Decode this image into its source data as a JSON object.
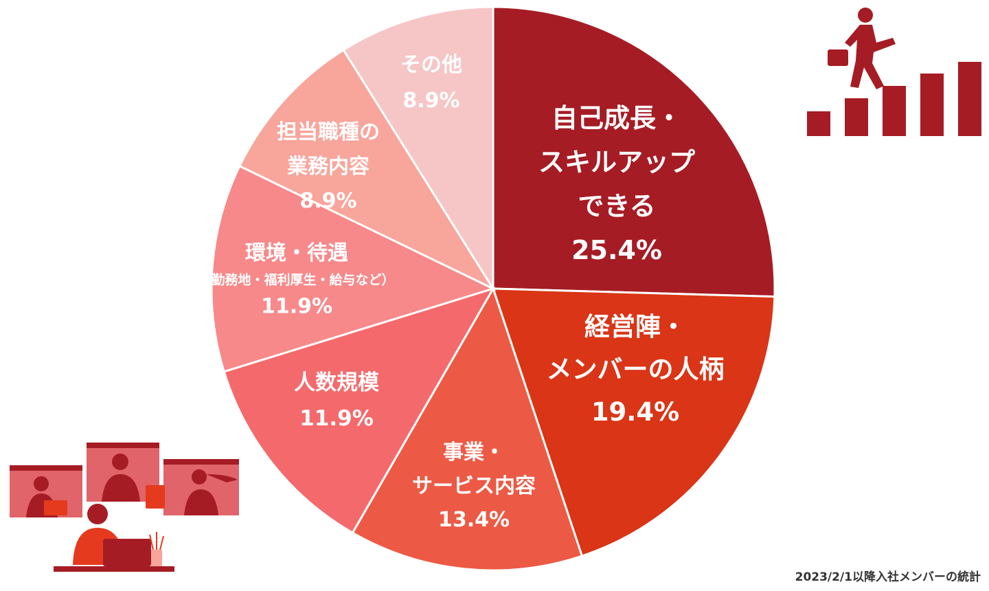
{
  "chart_data": {
    "type": "pie",
    "start_angle_deg": 0,
    "direction": "clockwise",
    "slices": [
      {
        "label_lines": [
          "自己成長・",
          "スキルアップ",
          "できる"
        ],
        "value": 25.4,
        "value_label": "25.4%",
        "color": "#a61c24"
      },
      {
        "label_lines": [
          "経営陣・",
          "メンバーの人柄"
        ],
        "value": 19.4,
        "value_label": "19.4%",
        "color": "#d93516"
      },
      {
        "label_lines": [
          "事業・",
          "サービス内容"
        ],
        "value": 13.4,
        "value_label": "13.4%",
        "color": "#ec5a45"
      },
      {
        "label_lines": [
          "人数規模"
        ],
        "value": 11.9,
        "value_label": "11.9%",
        "color": "#f46a6c"
      },
      {
        "label_lines": [
          "環境・待遇",
          "（勤務地・福利厚生・給与など）"
        ],
        "value": 11.9,
        "value_label": "11.9%",
        "color": "#f7898a"
      },
      {
        "label_lines": [
          "担当職種の",
          "業務内容"
        ],
        "value": 8.9,
        "value_label": "8.9%",
        "color": "#f8a59c"
      },
      {
        "label_lines": [
          "その他"
        ],
        "value": 8.9,
        "value_label": "8.9%",
        "color": "#f6c6c6"
      }
    ]
  },
  "footnote": "2023/2/1以降入社メンバーの統計",
  "icons": {
    "top_right": "businessman-climbing-bar-steps-icon",
    "bottom_left": "remote-meeting-team-illustration"
  },
  "colors": {
    "icon_primary": "#a61c24",
    "illustration_light": "#e0646a",
    "illustration_accent": "#e53a1e"
  }
}
